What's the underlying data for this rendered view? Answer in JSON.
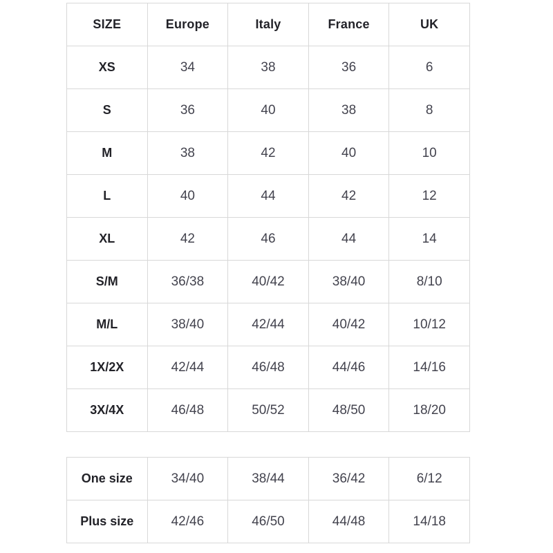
{
  "page": {
    "background": "#ffffff",
    "border_color": "#d8d8d8",
    "header_text_color": "#222228",
    "value_text_color": "#43434e"
  },
  "size_table": {
    "columns": [
      "SIZE",
      "Europe",
      "Italy",
      "France",
      "UK"
    ],
    "rows": [
      [
        "XS",
        "34",
        "38",
        "36",
        "6"
      ],
      [
        "S",
        "36",
        "40",
        "38",
        "8"
      ],
      [
        "M",
        "38",
        "42",
        "40",
        "10"
      ],
      [
        "L",
        "40",
        "44",
        "42",
        "12"
      ],
      [
        "XL",
        "42",
        "46",
        "44",
        "14"
      ],
      [
        "S/M",
        "36/38",
        "40/42",
        "38/40",
        "8/10"
      ],
      [
        "M/L",
        "38/40",
        "42/44",
        "40/42",
        "10/12"
      ],
      [
        "1X/2X",
        "42/44",
        "46/48",
        "44/46",
        "14/16"
      ],
      [
        "3X/4X",
        "46/48",
        "50/52",
        "48/50",
        "18/20"
      ]
    ]
  },
  "extra_table": {
    "rows": [
      [
        "One size",
        "34/40",
        "38/44",
        "36/42",
        "6/12"
      ],
      [
        "Plus size",
        "42/46",
        "46/50",
        "44/48",
        "14/18"
      ]
    ]
  }
}
